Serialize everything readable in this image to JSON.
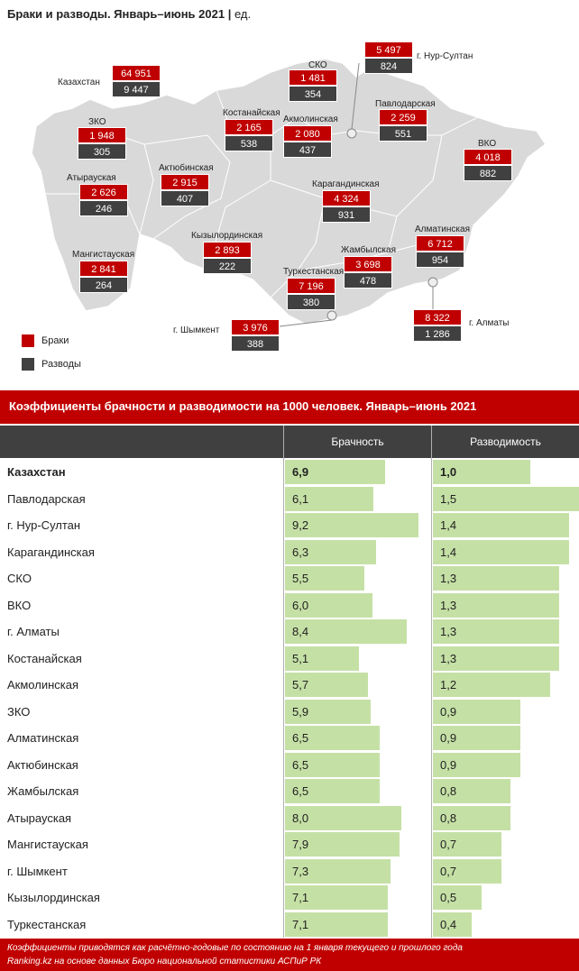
{
  "title": {
    "main": "Браки и разводы. Январь–июнь 2021",
    "unit": "ед."
  },
  "colors": {
    "marriage": "#c00000",
    "divorce": "#404040",
    "bar": "#c5e0a5",
    "map": "#d9d9d9"
  },
  "legend": {
    "marriage": "Браки",
    "divorce": "Разводы"
  },
  "map_regions": [
    {
      "name": "Казахстан",
      "marriages": "64 951",
      "divorces": "9 447"
    },
    {
      "name": "г. Нур-Султан",
      "marriages": "5 497",
      "divorces": "824"
    },
    {
      "name": "СКО",
      "marriages": "1 481",
      "divorces": "354"
    },
    {
      "name": "ЗКО",
      "marriages": "1 948",
      "divorces": "305"
    },
    {
      "name": "Костанайская",
      "marriages": "2 165",
      "divorces": "538"
    },
    {
      "name": "Акмолинская",
      "marriages": "2 080",
      "divorces": "437"
    },
    {
      "name": "Павлодарская",
      "marriages": "2 259",
      "divorces": "551"
    },
    {
      "name": "ВКО",
      "marriages": "4 018",
      "divorces": "882"
    },
    {
      "name": "Актюбинская",
      "marriages": "2 915",
      "divorces": "407"
    },
    {
      "name": "Атырауская",
      "marriages": "2 626",
      "divorces": "246"
    },
    {
      "name": "Карагандинская",
      "marriages": "4 324",
      "divorces": "931"
    },
    {
      "name": "Кызылординская",
      "marriages": "2 893",
      "divorces": "222"
    },
    {
      "name": "Алматинская",
      "marriages": "6 712",
      "divorces": "954"
    },
    {
      "name": "Мангистауская",
      "marriages": "2 841",
      "divorces": "264"
    },
    {
      "name": "Жамбылская",
      "marriages": "3 698",
      "divorces": "478"
    },
    {
      "name": "Туркестанская",
      "marriages": "7 196",
      "divorces": "380"
    },
    {
      "name": "г. Шымкент",
      "marriages": "3 976",
      "divorces": "388"
    },
    {
      "name": "г. Алматы",
      "marriages": "8 322",
      "divorces": "1 286"
    }
  ],
  "table": {
    "title": "Коэффициенты брачности и разводимости на 1000 человек. Январь–июнь 2021",
    "col_marriage": "Брачность",
    "col_divorce": "Разводимость"
  },
  "chart_data": {
    "type": "bar",
    "categories": [
      "Казахстан",
      "Павлодарская",
      "г. Нур-Султан",
      "Карагандинская",
      "СКО",
      "ВКО",
      "г. Алматы",
      "Костанайская",
      "Акмолинская",
      "ЗКО",
      "Алматинская",
      "Актюбинская",
      "Жамбылская",
      "Атырауская",
      "Мангистауская",
      "г. Шымкент",
      "Кызылординская",
      "Туркестанская"
    ],
    "series": [
      {
        "name": "Брачность",
        "values": [
          6.9,
          6.1,
          9.2,
          6.3,
          5.5,
          6.0,
          8.4,
          5.1,
          5.7,
          5.9,
          6.5,
          6.5,
          6.5,
          8.0,
          7.9,
          7.3,
          7.1,
          7.1
        ],
        "labels": [
          "6,9",
          "6,1",
          "9,2",
          "6,3",
          "5,5",
          "6,0",
          "8,4",
          "5,1",
          "5,7",
          "5,9",
          "6,5",
          "6,5",
          "6,5",
          "8,0",
          "7,9",
          "7,3",
          "7,1",
          "7,1"
        ],
        "max": 9.2
      },
      {
        "name": "Разводимость",
        "values": [
          1.0,
          1.5,
          1.4,
          1.4,
          1.3,
          1.3,
          1.3,
          1.3,
          1.2,
          0.9,
          0.9,
          0.9,
          0.8,
          0.8,
          0.7,
          0.7,
          0.5,
          0.4
        ],
        "labels": [
          "1,0",
          "1,5",
          "1,4",
          "1,4",
          "1,3",
          "1,3",
          "1,3",
          "1,3",
          "1,2",
          "0,9",
          "0,9",
          "0,9",
          "0,8",
          "0,8",
          "0,7",
          "0,7",
          "0,5",
          "0,4"
        ],
        "max": 1.5
      }
    ]
  },
  "footer": {
    "line1": "Коэффициенты приводятся как расчётно-годовые по состоянию на 1 января текущего и прошлого года",
    "line2": "Ranking.kz на основе данных Бюро национальной статистики АСПиР РК"
  }
}
